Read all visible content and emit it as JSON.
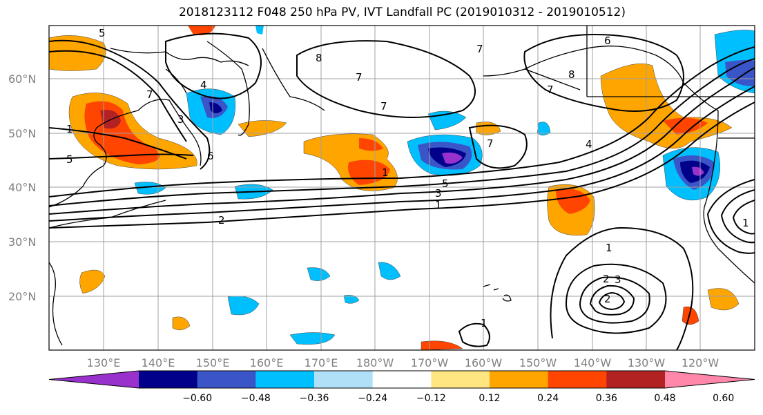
{
  "title": "2018123112 F048 250 hPa PV, IVT Landfall PC (2019010312 - 2019010512)",
  "lat_labels": [
    "60°N",
    "50°N",
    "40°N",
    "30°N",
    "20°N"
  ],
  "lon_labels": [
    "130°E",
    "140°E",
    "150°E",
    "160°E",
    "170°E",
    "180°W",
    "170°W",
    "160°W",
    "150°W",
    "140°W",
    "130°W",
    "120°W"
  ],
  "colorbar": {
    "levels": [
      "−0.60",
      "−0.48",
      "−0.36",
      "−0.24",
      "−0.12",
      "0.12",
      "0.24",
      "0.36",
      "0.48",
      "0.60"
    ],
    "colors": [
      "#9932CC",
      "#00008B",
      "#3A55C8",
      "#00BFFF",
      "#B0E0F8",
      "#FFFFFF",
      "#FFE680",
      "#FFA500",
      "#FF4500",
      "#B22222",
      "#FF88AA"
    ]
  },
  "contour_labels": [
    "5",
    "7",
    "8",
    "7",
    "6",
    "7",
    "8",
    "4",
    "3",
    "7",
    "1",
    "5",
    "6",
    "1",
    "7",
    "5",
    "7",
    "4",
    "3",
    "1",
    "2",
    "1",
    "2",
    "3",
    "2",
    "1",
    "1"
  ]
}
